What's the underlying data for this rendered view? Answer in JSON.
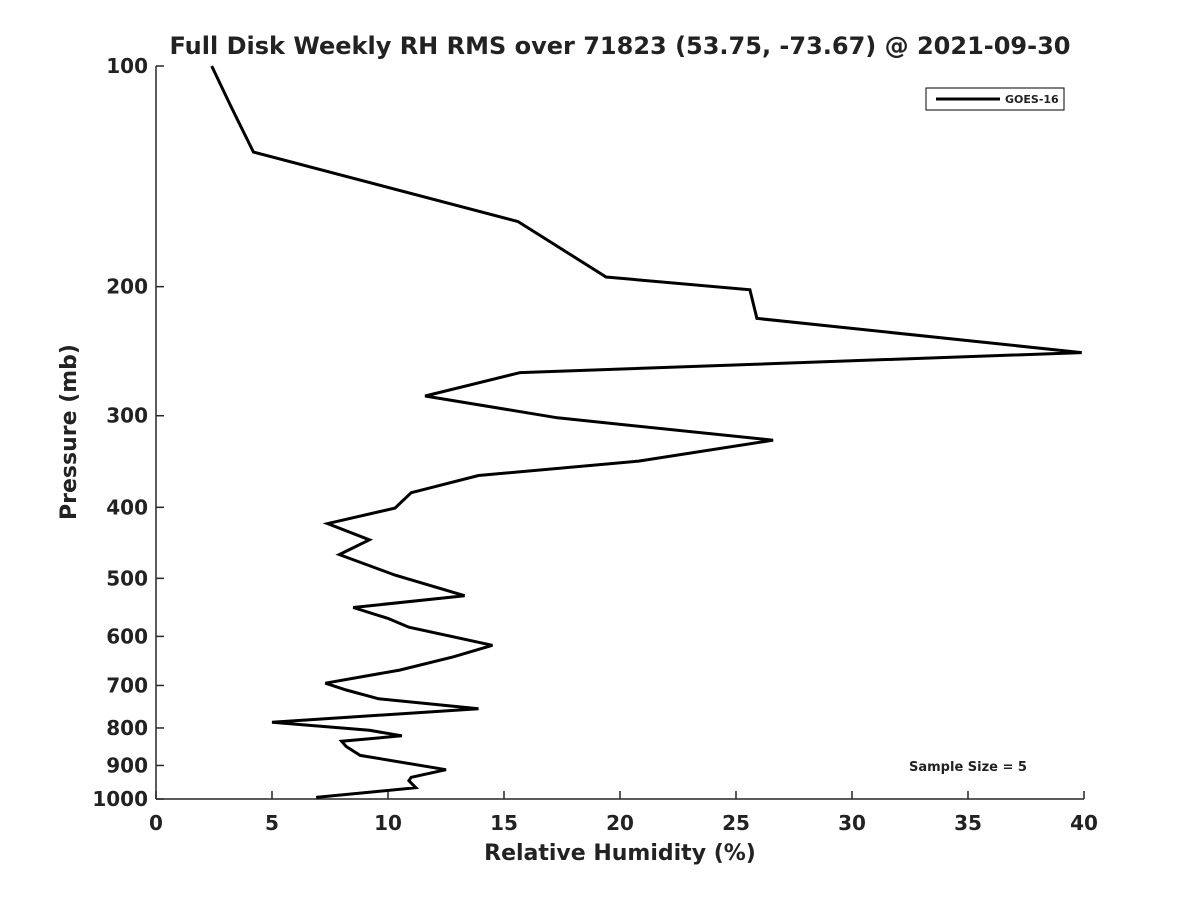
{
  "chart_data": {
    "type": "line",
    "title": "Full Disk Weekly RH RMS over 71823 (53.75, -73.67) @ 2021-09-30",
    "xlabel": "Relative Humidity (%)",
    "ylabel": "Pressure (mb)",
    "xlim": [
      0,
      40
    ],
    "ylim": [
      100,
      1000
    ],
    "y_scale": "log",
    "y_inverted": true,
    "grid": false,
    "x_ticks": [
      0,
      5,
      10,
      15,
      20,
      25,
      30,
      35,
      40
    ],
    "y_ticks": [
      100,
      200,
      300,
      400,
      500,
      600,
      700,
      800,
      900,
      1000
    ],
    "legend": {
      "placement": "top-right",
      "entries": [
        "GOES-16"
      ]
    },
    "annotation": "Sample Size = 5",
    "series": [
      {
        "name": "GOES-16",
        "color": "#000000",
        "x": [
          2.4,
          3.2,
          4.2,
          15.6,
          19.4,
          25.6,
          25.9,
          39.9,
          15.7,
          11.6,
          17.3,
          26.6,
          20.8,
          13.9,
          11.0,
          10.3,
          7.4,
          9.2,
          7.9,
          10.3,
          13.3,
          8.5,
          10.0,
          10.9,
          14.5,
          12.8,
          10.5,
          7.3,
          8.2,
          9.6,
          13.9,
          5.0,
          9.2,
          10.6,
          8.0,
          8.2,
          8.8,
          12.5,
          11.0,
          10.9,
          11.2,
          6.9
        ],
        "y": [
          100,
          113,
          131,
          163,
          194,
          202,
          221,
          246,
          262,
          282,
          302,
          324,
          346,
          362,
          382,
          401,
          421,
          443,
          464,
          495,
          528,
          548,
          567,
          583,
          617,
          640,
          667,
          695,
          710,
          730,
          753,
          786,
          806,
          820,
          834,
          848,
          872,
          912,
          934,
          944,
          965,
          995
        ]
      }
    ]
  }
}
